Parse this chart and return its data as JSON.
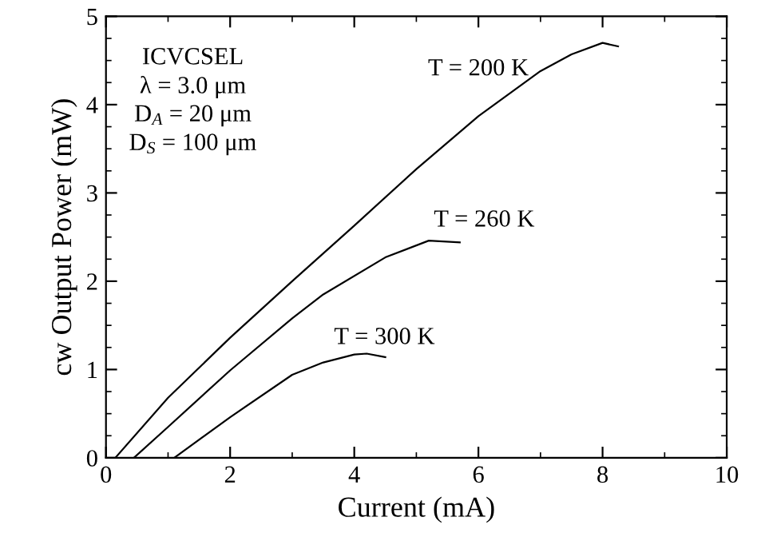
{
  "chart_data": {
    "type": "line",
    "xlabel": "Current (mA)",
    "ylabel": "cw Output Power (mW)",
    "xlim": [
      0,
      10
    ],
    "ylim": [
      0,
      5
    ],
    "xticks": [
      0,
      2,
      4,
      6,
      8,
      10
    ],
    "yticks": [
      0,
      1,
      2,
      3,
      4,
      5
    ],
    "grid": false,
    "legend": false,
    "marker": "none",
    "line_style": "solid",
    "series": [
      {
        "name": "T = 200 K",
        "color": "#000000",
        "x": [
          0.15,
          1,
          2,
          3,
          4,
          5,
          6,
          7,
          7.5,
          8,
          8.25
        ],
        "values": [
          0,
          0.68,
          1.36,
          2.0,
          2.63,
          3.27,
          3.87,
          4.38,
          4.57,
          4.7,
          4.66
        ]
      },
      {
        "name": "T = 260 K",
        "color": "#000000",
        "x": [
          0.45,
          1,
          2,
          3,
          3.5,
          4.5,
          5.2,
          5.7
        ],
        "values": [
          0,
          0.35,
          0.99,
          1.58,
          1.85,
          2.27,
          2.46,
          2.44
        ]
      },
      {
        "name": "T = 300 K",
        "color": "#000000",
        "x": [
          1.1,
          2,
          3,
          3.5,
          4,
          4.2,
          4.5
        ],
        "values": [
          0,
          0.46,
          0.94,
          1.08,
          1.17,
          1.18,
          1.14
        ]
      }
    ],
    "annotations": [
      "ICVCSEL",
      "λ = 3.0 μm",
      "D$_{A}$ = 20 μm",
      "D$_{S}$ = 100 μm"
    ]
  }
}
